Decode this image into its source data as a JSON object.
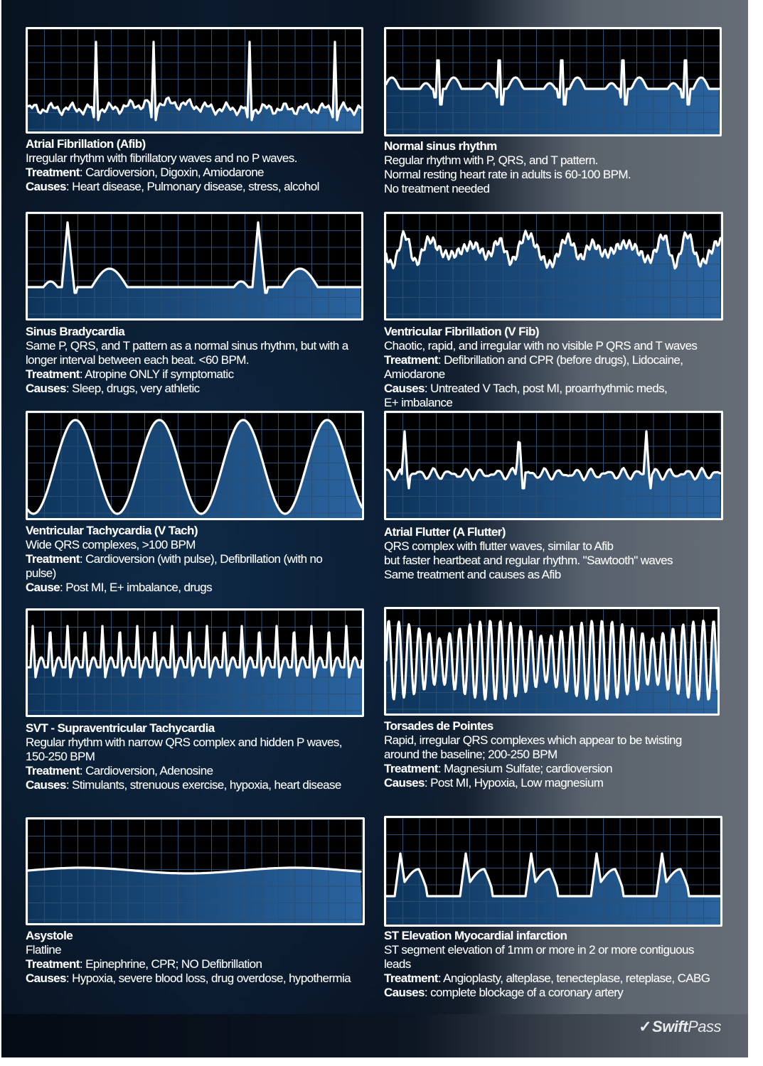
{
  "cards": [
    {
      "id": "afib",
      "title": "Atrial Fibrillation (Afib)",
      "lines": [
        {
          "text": "Irregular rhythm with fibrillatory waves and no P waves."
        },
        {
          "label": "Treatment",
          "text": ": Cardioversion, Digoxin, Amiodarone"
        },
        {
          "label": "Causes",
          "text": ": Heart disease, Pulmonary disease, stress, alcohol"
        }
      ]
    },
    {
      "id": "nsr",
      "title": "Normal sinus rhythm",
      "lines": [
        {
          "text": "Regular rhythm with P, QRS, and T pattern."
        },
        {
          "text": "Normal resting heart rate in adults is 60-100 BPM."
        },
        {
          "text": "No treatment needed"
        }
      ]
    },
    {
      "id": "brady",
      "title": "Sinus Bradycardia",
      "lines": [
        {
          "text": "Same P, QRS, and T pattern as a normal sinus rhythm, but with a"
        },
        {
          "text": "longer interval between each beat. <60 BPM."
        },
        {
          "label": "Treatment",
          "text": ": Atropine ONLY if symptomatic"
        },
        {
          "label": "Causes",
          "text": ": Sleep, drugs, very athletic"
        }
      ]
    },
    {
      "id": "vfib",
      "title": "Ventricular Fibrillation (V Fib)",
      "lines": [
        {
          "text": "Chaotic, rapid, and irregular with no visible P QRS and T waves"
        },
        {
          "label": "Treatment",
          "text": ": Defibrillation and CPR (before drugs), Lidocaine,"
        },
        {
          "text": "Amiodarone"
        },
        {
          "label": "Causes",
          "text": ": Untreated V Tach, post MI, proarrhythmic meds,"
        },
        {
          "text": "E+ imbalance"
        }
      ]
    },
    {
      "id": "vtach",
      "title": "Ventricular Tachycardia (V Tach)",
      "lines": [
        {
          "text": "Wide QRS complexes, >100 BPM"
        },
        {
          "label": "Treatment",
          "text": ": Cardioversion (with pulse), Defibrillation (with no"
        },
        {
          "text": "pulse)"
        },
        {
          "label": "Cause",
          "text": ": Post MI, E+ imbalance, drugs"
        }
      ]
    },
    {
      "id": "aflutter",
      "title": "Atrial Flutter (A Flutter)",
      "lines": [
        {
          "text": "QRS complex with flutter waves, similar to Afib"
        },
        {
          "text": "but faster heartbeat and regular rhythm. \"Sawtooth\" waves"
        },
        {
          "text": "Same treatment and causes as Afib"
        }
      ]
    },
    {
      "id": "svt",
      "title": "SVT - Supraventricular Tachycardia",
      "lines": [
        {
          "text": "Regular rhythm with narrow QRS complex and hidden P waves,"
        },
        {
          "text": "150-250 BPM"
        },
        {
          "label": "Treatment",
          "text": ": Cardioversion, Adenosine"
        },
        {
          "label": "Causes",
          "text": ": Stimulants, strenuous exercise, hypoxia, heart disease"
        }
      ]
    },
    {
      "id": "torsades",
      "title": "Torsades de Pointes",
      "lines": [
        {
          "text": "Rapid, irregular QRS complexes which appear to be twisting"
        },
        {
          "text": "around the baseline; 200-250 BPM"
        },
        {
          "label": "Treatment",
          "text": ": Magnesium Sulfate; cardioversion"
        },
        {
          "label": "Causes",
          "text": ": Post MI, Hypoxia, Low magnesium"
        }
      ]
    },
    {
      "id": "asystole",
      "title": "Asystole",
      "lines": [
        {
          "text": "Flatline"
        },
        {
          "label": "Treatment",
          "text": ": Epinephrine, CPR; NO Defibrillation"
        },
        {
          "label": "Causes",
          "text": ": Hypoxia, severe blood loss, drug overdose, hypothermia"
        }
      ]
    },
    {
      "id": "stemi",
      "title": "ST Elevation Myocardial infarction",
      "lines": [
        {
          "text": "ST segment elevation of 1mm or more in 2 or more contiguous"
        },
        {
          "text": "leads"
        },
        {
          "label": "Treatment",
          "text": ": Angioplasty, alteplase, tenecteplase, reteplase, CABG"
        },
        {
          "label": "Causes",
          "text": ": complete blockage of a coronary artery"
        }
      ]
    }
  ],
  "brand": {
    "swift": "Swift",
    "pass": "Pass",
    "icon": "checkmark-icon"
  },
  "colors": {
    "trace": "#ffffff",
    "grid": "#2c4e72",
    "fill_dark": "#0e3a66",
    "fill_light": "#2f6fb0"
  }
}
